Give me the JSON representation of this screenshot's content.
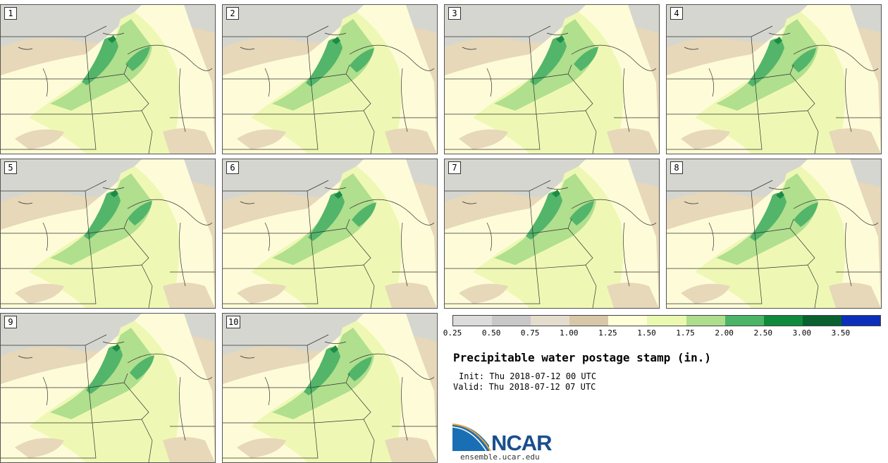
{
  "stamps": [
    "1",
    "2",
    "3",
    "4",
    "5",
    "6",
    "7",
    "8",
    "9",
    "10"
  ],
  "colorbar": {
    "colors": [
      "#dcdcdc",
      "#c8c8c8",
      "#e4dccc",
      "#d8c8a8",
      "#ffffd8",
      "#eaf8b0",
      "#aedd8e",
      "#4bb466",
      "#0f8a3c",
      "#08612e",
      "#0b2fb8"
    ],
    "ticks": [
      "0.25",
      "0.50",
      "0.75",
      "1.00",
      "1.25",
      "1.50",
      "1.75",
      "2.00",
      "2.50",
      "3.00",
      "3.50"
    ]
  },
  "title": "Precipitable water postage stamp (in.)",
  "init_line": "Init: Thu 2018-07-12 00 UTC",
  "valid_line": "Valid: Thu 2018-07-12 07 UTC",
  "logo": {
    "name": "NCAR",
    "url": "ensemble.ucar.edu"
  },
  "map_fill": {
    "gray": "#d6d6d0",
    "tan": "#e6d8b8",
    "cream": "#fefcd8",
    "light": "#eef8b4",
    "mid": "#b0df8e",
    "dark": "#52b56a",
    "darkest": "#1d8a45"
  }
}
